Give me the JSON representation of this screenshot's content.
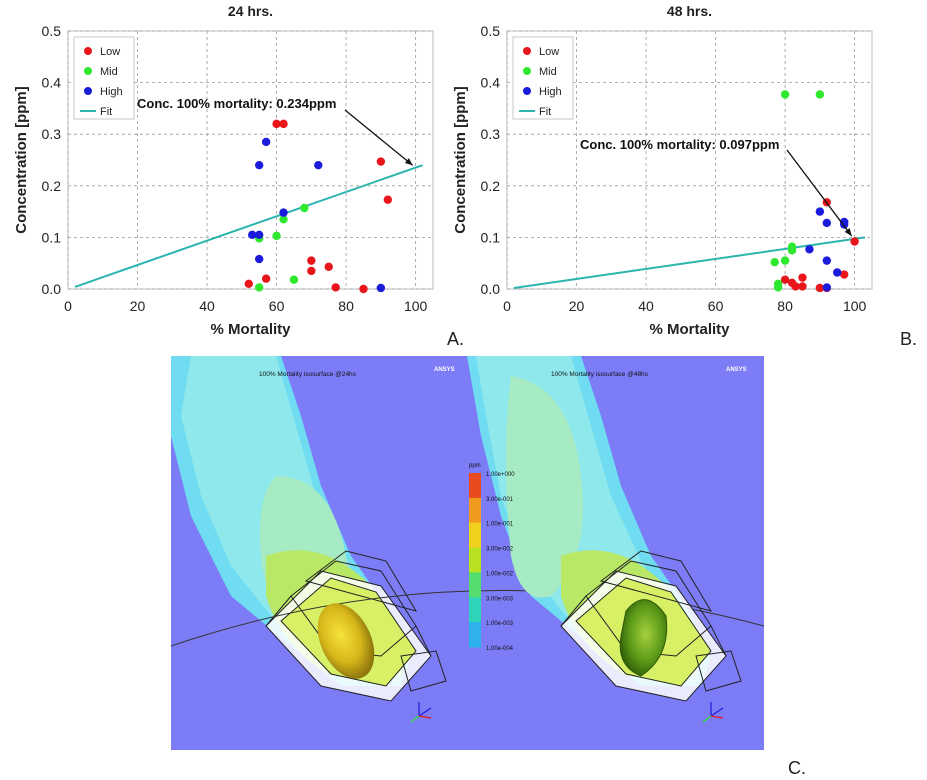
{
  "chart_data": [
    {
      "type": "scatter",
      "title": "24 hrs.",
      "xlabel": "% Mortality",
      "ylabel": "Concentration [ppm]",
      "xlim": [
        0,
        105
      ],
      "ylim": [
        0,
        0.5
      ],
      "xticks": [
        "0",
        "20",
        "40",
        "60",
        "80",
        "100"
      ],
      "yticks": [
        "0.0",
        "0.1",
        "0.2",
        "0.3",
        "0.4",
        "0.5"
      ],
      "grid": true,
      "legend": "top-left",
      "annotation": "Conc. 100% mortality: 0.234ppm",
      "annotation_target": {
        "x": 100,
        "y": 0.234
      },
      "fit": {
        "name": "Fit",
        "color": "#2cb5b0",
        "x": [
          2,
          102
        ],
        "y": [
          0.004,
          0.24
        ]
      },
      "series": [
        {
          "name": "Low",
          "color": "#e8161b",
          "x": [
            52,
            57,
            60,
            62,
            70,
            70,
            75,
            77,
            85,
            90,
            92
          ],
          "y": [
            0.01,
            0.02,
            0.32,
            0.32,
            0.055,
            0.035,
            0.043,
            0.003,
            0.0,
            0.247,
            0.173
          ]
        },
        {
          "name": "Mid",
          "color": "#2ee82e",
          "x": [
            55,
            55,
            60,
            62,
            65,
            68
          ],
          "y": [
            0.098,
            0.003,
            0.103,
            0.135,
            0.018,
            0.157
          ]
        },
        {
          "name": "High",
          "color": "#1b1bdb",
          "x": [
            53,
            55,
            55,
            55,
            57,
            62,
            72,
            90
          ],
          "y": [
            0.105,
            0.105,
            0.24,
            0.058,
            0.285,
            0.148,
            0.24,
            0.002
          ]
        }
      ]
    },
    {
      "type": "scatter",
      "title": "48 hrs.",
      "xlabel": "% Mortality",
      "ylabel": "Concentration [ppm]",
      "xlim": [
        0,
        105
      ],
      "ylim": [
        0,
        0.5
      ],
      "xticks": [
        "0",
        "20",
        "40",
        "60",
        "80",
        "100"
      ],
      "yticks": [
        "0.0",
        "0.1",
        "0.2",
        "0.3",
        "0.4",
        "0.5"
      ],
      "grid": true,
      "legend": "top-left",
      "annotation": "Conc. 100% mortality: 0.097ppm",
      "annotation_target": {
        "x": 100,
        "y": 0.097
      },
      "fit": {
        "name": "Fit",
        "color": "#2cb5b0",
        "x": [
          2,
          103
        ],
        "y": [
          0.002,
          0.1
        ]
      },
      "series": [
        {
          "name": "Low",
          "color": "#e8161b",
          "x": [
            80,
            82,
            83,
            85,
            85,
            90,
            92,
            92,
            97,
            100
          ],
          "y": [
            0.018,
            0.012,
            0.005,
            0.022,
            0.005,
            0.002,
            0.168,
            0.002,
            0.028,
            0.092
          ]
        },
        {
          "name": "Mid",
          "color": "#2ee82e",
          "x": [
            77,
            78,
            78,
            80,
            80,
            82,
            82,
            90
          ],
          "y": [
            0.052,
            0.01,
            0.003,
            0.377,
            0.055,
            0.075,
            0.082,
            0.377
          ]
        },
        {
          "name": "High",
          "color": "#1b1bdb",
          "x": [
            87,
            90,
            92,
            92,
            92,
            95,
            97,
            97
          ],
          "y": [
            0.077,
            0.15,
            0.128,
            0.055,
            0.003,
            0.032,
            0.13,
            0.125
          ]
        }
      ]
    }
  ],
  "panels": {
    "a_letter": "A.",
    "b_letter": "B.",
    "c_letter": "C."
  },
  "simulation": {
    "left_title": "100% Mortality isosurface @24hs",
    "right_title": "100% Mortality isosurface @48hs",
    "logo": "ANSYS",
    "background_color": "#7c7cf6",
    "legend_unit": "ppm",
    "legend_labels": [
      "1.00e+000",
      "3.00e-001",
      "1.00e-001",
      "3.00e-002",
      "1.00e-002",
      "3.00e-003",
      "1.00e-003",
      "1.00e-004"
    ],
    "legend_colors": [
      "#e84b1f",
      "#f09a20",
      "#f0d21e",
      "#b8e11f",
      "#56dd6f",
      "#2fd3b9",
      "#2eb2ee",
      "#2c7be6"
    ]
  }
}
